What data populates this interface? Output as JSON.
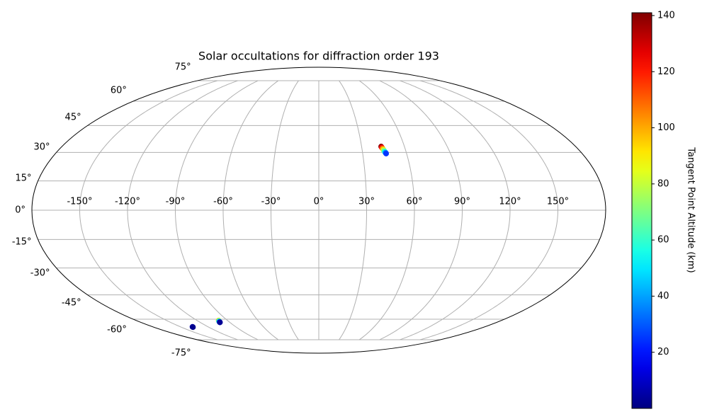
{
  "chart_data": {
    "type": "scatter",
    "projection": "mollweide",
    "title": "Solar occultations for diffraction order 193",
    "xlim": [
      -180,
      180
    ],
    "ylim": [
      -90,
      90
    ],
    "xticks": [
      {
        "value": -150,
        "label": "-150°"
      },
      {
        "value": -120,
        "label": "-120°"
      },
      {
        "value": -90,
        "label": "-90°"
      },
      {
        "value": -60,
        "label": "-60°"
      },
      {
        "value": -30,
        "label": "-30°"
      },
      {
        "value": 0,
        "label": "0°"
      },
      {
        "value": 30,
        "label": "30°"
      },
      {
        "value": 60,
        "label": "60°"
      },
      {
        "value": 90,
        "label": "90°"
      },
      {
        "value": 120,
        "label": "120°"
      },
      {
        "value": 150,
        "label": "150°"
      }
    ],
    "yticks": [
      {
        "value": -75,
        "label": "-75°"
      },
      {
        "value": -60,
        "label": "-60°"
      },
      {
        "value": -45,
        "label": "-45°"
      },
      {
        "value": -30,
        "label": "-30°"
      },
      {
        "value": -15,
        "label": "-15°"
      },
      {
        "value": 0,
        "label": "0°"
      },
      {
        "value": 15,
        "label": "15°"
      },
      {
        "value": 30,
        "label": "30°"
      },
      {
        "value": 45,
        "label": "45°"
      },
      {
        "value": 60,
        "label": "60°"
      },
      {
        "value": 75,
        "label": "75°"
      }
    ],
    "grid": true,
    "colormap": "jet",
    "series": [
      {
        "x": [
          43.7,
          44.0,
          44.3,
          44.6,
          44.9,
          45.2,
          45.5,
          45.8,
          46.0,
          -98.8,
          -99.2,
          -99.5,
          -99.7,
          -99.9,
          -100.0,
          -137.0,
          -137.2
        ],
        "values": [
          33.2,
          32.7,
          32.2,
          31.7,
          31.2,
          30.7,
          30.2,
          29.8,
          29.4,
          -60.9,
          -61.2,
          -61.5,
          -61.8,
          -62.0,
          -62.1,
          -65.2,
          -65.4
        ],
        "altitude": [
          140,
          125,
          110,
          95,
          80,
          65,
          50,
          35,
          25,
          95,
          70,
          50,
          30,
          12,
          3,
          5,
          2
        ]
      }
    ],
    "colorbar": {
      "label": "Tangent Point Altitude (km)",
      "lim": [
        0,
        141
      ],
      "ticks": [
        20,
        40,
        60,
        80,
        100,
        120,
        140
      ]
    }
  }
}
